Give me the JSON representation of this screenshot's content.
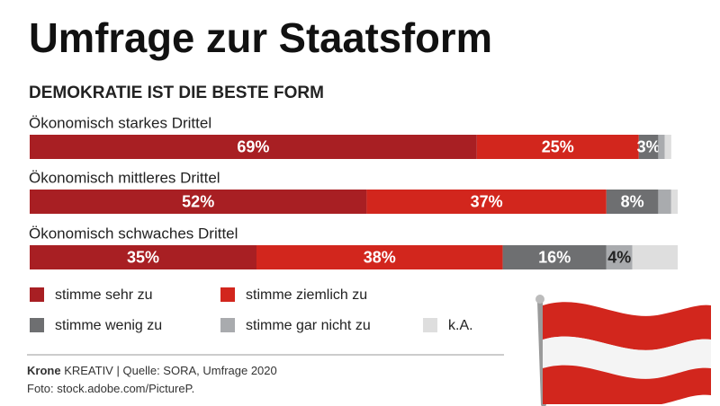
{
  "chart_data": {
    "type": "stacked-bar",
    "title": "Umfrage zur Staatsform",
    "subtitle": "DEMOKRATIE IST DIE BESTE FORM",
    "categories": [
      "Ökonomisch starkes Drittel",
      "Ökonomisch mittleres Drittel",
      "Ökonomisch schwaches Drittel"
    ],
    "series": [
      {
        "name": "stimme sehr zu",
        "color": "#a81f23",
        "values": [
          69,
          52,
          35
        ],
        "value_labels": [
          "69%",
          "52%",
          "35%"
        ]
      },
      {
        "name": "stimme ziemlich zu",
        "color": "#d2261d",
        "values": [
          25,
          37,
          38
        ],
        "value_labels": [
          "25%",
          "37%",
          "38%"
        ]
      },
      {
        "name": "stimme wenig zu",
        "color": "#6e6f71",
        "values": [
          3,
          8,
          16
        ],
        "value_labels": [
          "3%",
          "8%",
          "16%"
        ]
      },
      {
        "name": "stimme gar nicht zu",
        "color": "#a9abae",
        "values": [
          1,
          2,
          4
        ],
        "value_labels": [
          null,
          null,
          "4%"
        ]
      },
      {
        "name": "k.A.",
        "color": "#dedede",
        "values": [
          1,
          1,
          7
        ],
        "value_labels": [
          null,
          null,
          null
        ]
      }
    ]
  },
  "footer": {
    "brand": "Krone",
    "brand_suffix": "KREATIV",
    "separator": "|",
    "source": "Quelle: SORA, Umfrage 2020",
    "photo": "Foto: stock.adobe.com/PictureP."
  }
}
